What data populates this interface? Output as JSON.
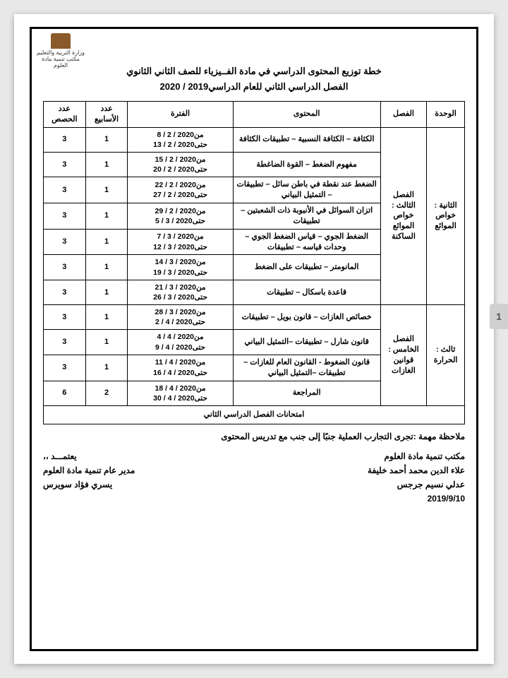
{
  "logo_text": "وزارة التربية والتعليم\nمكتب تنمية مادة العلوم",
  "title_line1": "خطة توزيع المحتوى الدراسي في مادة الفــيزياء للصف الثاني الثانوي",
  "title_line2": "الفصل الدراسي الثاني للعام الدراسي2019 / 2020",
  "headers": {
    "unit": "الوحدة",
    "chapter": "الفصل",
    "content": "المحتوى",
    "period": "الفترة",
    "weeks": "عدد الأسابيع",
    "sessions": "عدد الحصص"
  },
  "unit1": "الثانية : خواص الموائع",
  "chap1": "الفصل الثالث : خواص الموائع الساكنة",
  "unit2": "ثالث : الحرارة",
  "chap2": "الفصل الخامس : قوانين الغازات",
  "rows": [
    {
      "content": "الكثافة – الكثافة النسبية – تطبيقات الكثافة",
      "from": "من2020 / 2 / 8",
      "to": "حتى2020 / 2 / 13",
      "weeks": "1",
      "sessions": "3"
    },
    {
      "content": "مفهوم الضغط – القوة الضاغطة",
      "from": "من2020 / 2 / 15",
      "to": "حتى2020 / 2 / 20",
      "weeks": "1",
      "sessions": "3"
    },
    {
      "content": "الضغط عند نقطة في باطن سائل – تطبيقات – التمثيل البياني",
      "from": "من2020 / 2 / 22",
      "to": "حتى2020 / 2 / 27",
      "weeks": "1",
      "sessions": "3"
    },
    {
      "content": "اتزان السوائل في الأنبوبة ذات الشعبتين – تطبيقات",
      "from": "من2020 / 2 / 29",
      "to": "حتى2020 / 3 / 5",
      "weeks": "1",
      "sessions": "3"
    },
    {
      "content": "الضغط الجوي – قياس الضغط الجوي –وحدات قياسه – تطبيقات",
      "from": "من2020 / 3 / 7",
      "to": "حتى2020 / 3 / 12",
      "weeks": "1",
      "sessions": "3"
    },
    {
      "content": "المانومتر – تطبيقات على الضغط",
      "from": "من2020 / 3 / 14",
      "to": "حتى2020 / 3 / 19",
      "weeks": "1",
      "sessions": "3"
    },
    {
      "content": "قاعدة باسكال – تطبيقات",
      "from": "من2020 / 3 / 21",
      "to": "حتى2020 / 3 / 26",
      "weeks": "1",
      "sessions": "3"
    },
    {
      "content": "خصائص الغازات – قانون بويل – تطبيقات",
      "from": "من2020 / 3 / 28",
      "to": "حتى2020 / 4 / 2",
      "weeks": "1",
      "sessions": "3"
    },
    {
      "content": "قانون شارل – تطبيقات –التمثيل البياني",
      "from": "من2020 / 4 / 4",
      "to": "حتى2020 / 4 / 9",
      "weeks": "1",
      "sessions": "3"
    },
    {
      "content": "قانون الضغوط - القانون العام للغازات – تطبيقات –التمثيل البياني",
      "from": "من2020 / 4 / 11",
      "to": "حتى2020 / 4 / 16",
      "weeks": "1",
      "sessions": "3"
    },
    {
      "content": "المراجعة",
      "from": "من2020 / 4 / 18",
      "to": "حتى2020 / 4 / 30",
      "weeks": "2",
      "sessions": "6"
    }
  ],
  "exam_row": "امتحانات الفصل الدراسي الثاني",
  "note": "ملاحظة مهمة :تجرى التجارب العملية جنبًا إلى جنب مع تدريس المحتوى",
  "sig": {
    "office": "مكتب تنمية مادة العلوم",
    "name1": "علاء الدين محمد أحمد خليفة",
    "name2": "عدلي نسيم جرجس",
    "date": "2019/9/10",
    "approved": "يعتمـــد ،،",
    "director_title": "مدير عام تنمية مادة العلوم",
    "director_name": "يسري فؤاد سويرس"
  },
  "page_num": "1"
}
